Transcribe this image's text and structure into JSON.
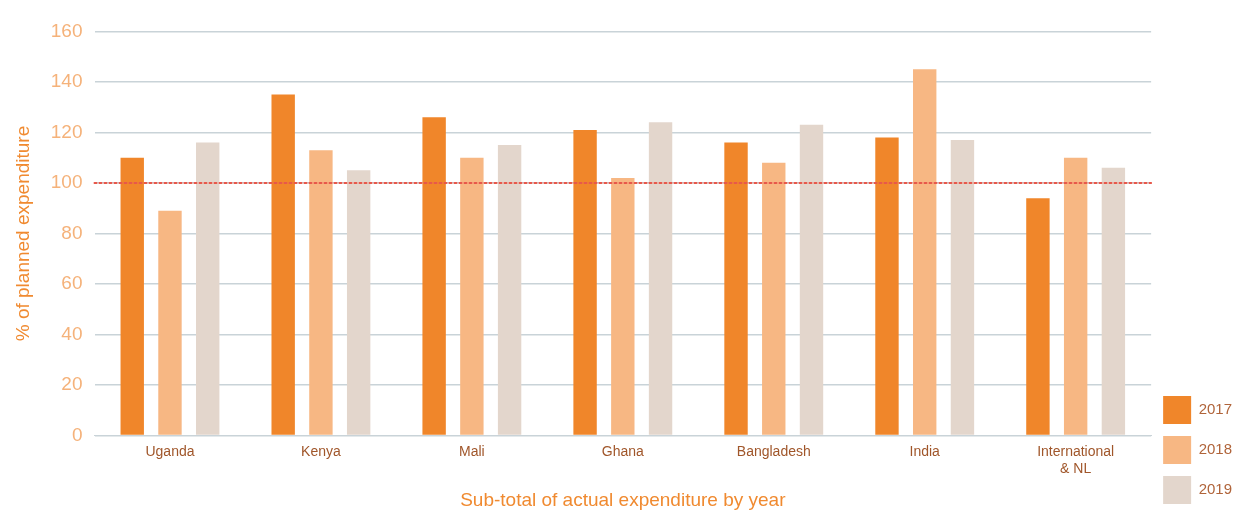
{
  "chart_data": {
    "type": "bar",
    "xlabel": "Sub-total of actual expenditure by year",
    "ylabel": "% of planned expenditure",
    "categories": [
      "Uganda",
      "Kenya",
      "Mali",
      "Ghana",
      "Bangladesh",
      "India",
      "International & NL"
    ],
    "series": [
      {
        "name": "2017",
        "color": "#f0862a",
        "values": [
          110,
          135,
          126,
          121,
          116,
          118,
          94
        ]
      },
      {
        "name": "2018",
        "color": "#f7b783",
        "values": [
          89,
          113,
          110,
          102,
          108,
          145,
          110
        ]
      },
      {
        "name": "2019",
        "color": "#e3d6cc",
        "values": [
          116,
          105,
          115,
          124,
          123,
          117,
          106
        ]
      }
    ],
    "ylim": [
      0,
      160
    ],
    "yticks": [
      0,
      20,
      40,
      60,
      80,
      100,
      120,
      140,
      160
    ],
    "grid": "y",
    "legend": "bottom right",
    "ref_lines": [
      {
        "axis": "y",
        "value": 100,
        "color": "#e8584a",
        "line_style": "dotted"
      }
    ]
  }
}
